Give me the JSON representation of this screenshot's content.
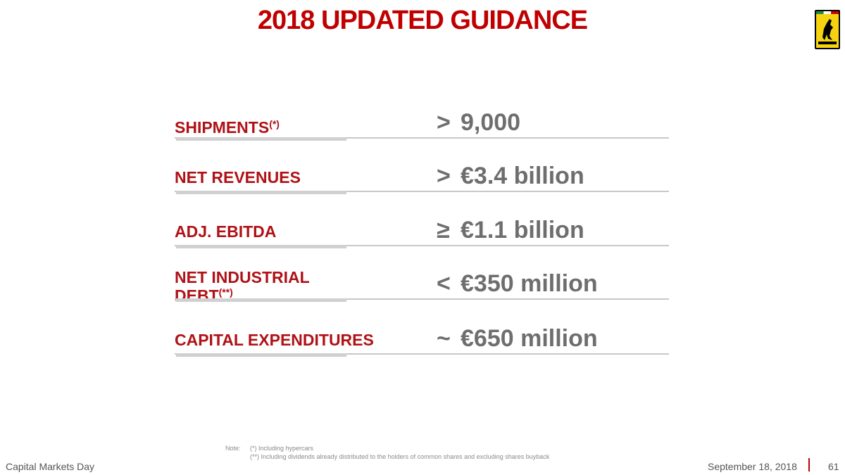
{
  "header": {
    "title": "2018 UPDATED GUIDANCE"
  },
  "rows": [
    {
      "label": [
        "SHIPMENTS"
      ],
      "note_mark": "(*)",
      "symbol": ">",
      "amount": "9,000"
    },
    {
      "label": [
        "NET REVENUES"
      ],
      "symbol": ">",
      "amount": "€3.4 billion"
    },
    {
      "label": [
        "ADJ. EBITDA"
      ],
      "symbol": "≥",
      "amount": "€1.1 billion"
    },
    {
      "label": [
        "NET INDUSTRIAL",
        "DEBT"
      ],
      "note_mark": "(**)",
      "symbol": "<",
      "amount": "€350 million"
    },
    {
      "label": [
        "CAPITAL EXPENDITURES"
      ],
      "symbol": "~",
      "amount": "€650 million"
    }
  ],
  "notes": {
    "heading": "Note:",
    "items": [
      "(*) Including hypercars",
      "(**) Including dividends already distributed to the holders of common shares and excluding shares buyback"
    ]
  },
  "footer": {
    "event": "Capital Markets Day",
    "date": "September 18, 2018",
    "page": "61"
  }
}
